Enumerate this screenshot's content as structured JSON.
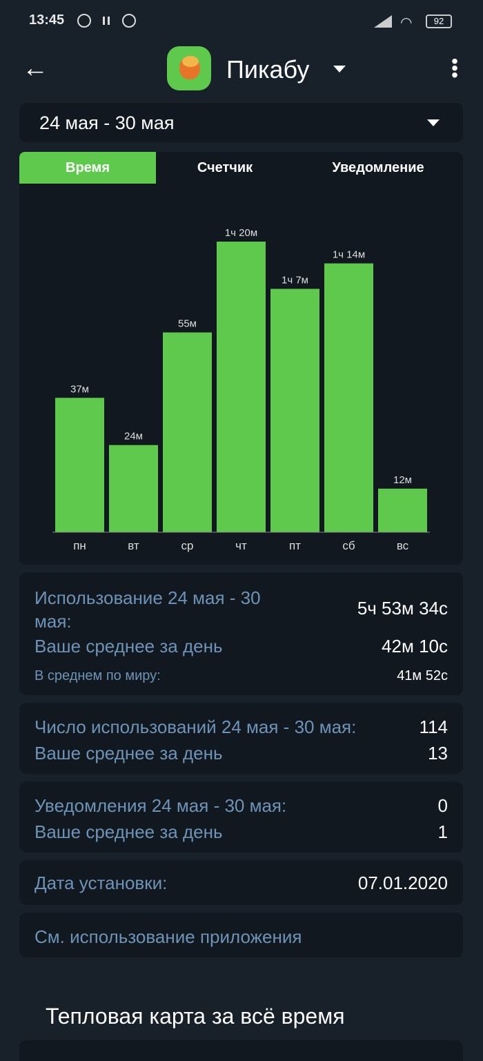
{
  "status_bar": {
    "time": "13:45",
    "battery": "92"
  },
  "header": {
    "app_name": "Пикабу"
  },
  "date_range": {
    "selected": "24 мая - 30 мая"
  },
  "tabs": [
    {
      "label": "Время",
      "active": true
    },
    {
      "label": "Счетчик",
      "active": false
    },
    {
      "label": "Уведомление",
      "active": false
    }
  ],
  "colors": {
    "accent": "#5ec94c",
    "background": "#18202a",
    "card": "#111820",
    "label": "#6f93b7"
  },
  "chart_data": {
    "type": "bar",
    "categories": [
      "пн",
      "вт",
      "ср",
      "чт",
      "пт",
      "сб",
      "вс"
    ],
    "values": [
      37,
      24,
      55,
      80,
      67,
      74,
      12
    ],
    "value_unit": "minutes",
    "data_labels": [
      "37м",
      "24м",
      "55м",
      "1ч 20м",
      "1ч 7м",
      "1ч 14м",
      "12м"
    ],
    "ylim": [
      0,
      80
    ],
    "grid": false
  },
  "usage": {
    "label": "Использование 24 мая - 30 мая:",
    "value": "5ч 53м 34с",
    "avg_label": "Ваше среднее за день",
    "avg_value": "42м 10с",
    "world_label": "В среднем по миру:",
    "world_value": "41м 52с"
  },
  "launches": {
    "label": "Число использований 24 мая - 30 мая:",
    "value": "114",
    "avg_label": "Ваше среднее за день",
    "avg_value": "13"
  },
  "notifications": {
    "label": "Уведомления 24 мая - 30 мая:",
    "value": "0",
    "avg_label": "Ваше среднее за день",
    "avg_value": "1"
  },
  "install": {
    "label": "Дата установки:",
    "value": "07.01.2020"
  },
  "see_usage": {
    "label": "См. использование приложения"
  },
  "heatmap": {
    "title": "Тепловая карта за всё время"
  }
}
